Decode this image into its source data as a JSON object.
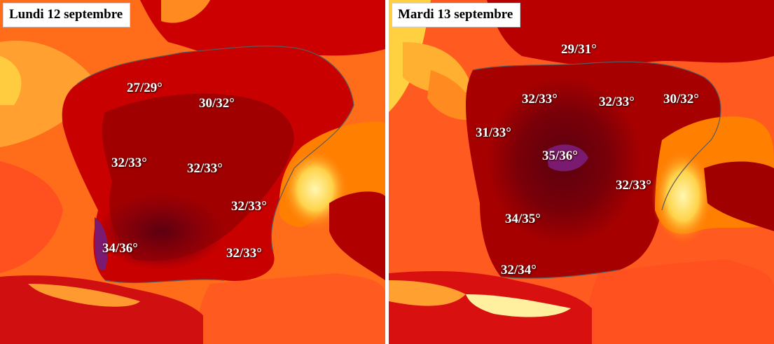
{
  "maps": [
    {
      "title": "Lundi 12 septembre",
      "labels": [
        "27/29°",
        "30/32°",
        "32/33°",
        "32/33°",
        "32/33°",
        "34/36°",
        "32/33°"
      ]
    },
    {
      "title": "Mardi 13 septembre",
      "labels": [
        "29/31°",
        "32/33°",
        "32/33°",
        "30/32°",
        "31/33°",
        "35/36°",
        "32/33°",
        "34/35°",
        "32/34°"
      ]
    }
  ],
  "colors": {
    "sea_orange": "#ff7a1a",
    "land_red": "#d40000",
    "land_dark": "#a00000",
    "hot_core": "#6e0010",
    "extreme": "#8a1a70",
    "alps_light": "#ffe680",
    "borders": "#5a5a5a"
  }
}
